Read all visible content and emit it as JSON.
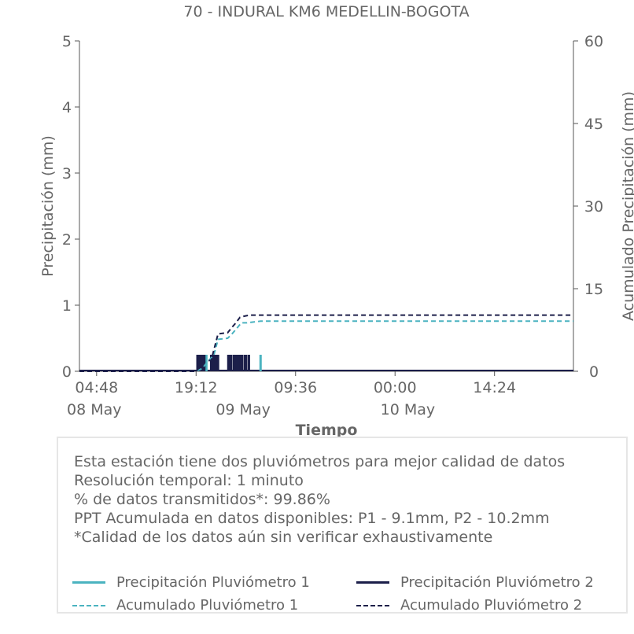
{
  "chart_data": {
    "type": "bar",
    "title": "70 - INDURAL KM6 MEDELLIN-BOGOTA",
    "xlabel": "Tiempo",
    "ylabel": "Precipitación (mm)",
    "y2label": "Acumulado Precipitación (mm)",
    "ylim": [
      0,
      5
    ],
    "y2lim": [
      0,
      60
    ],
    "yticks": [
      "0",
      "1",
      "2",
      "3",
      "4",
      "5"
    ],
    "y2ticks": [
      "0",
      "15",
      "30",
      "45",
      "60"
    ],
    "xlim_hours": [
      0,
      72
    ],
    "xticks": [
      {
        "hour": 2.5,
        "time": "04:48",
        "date": "08 May"
      },
      {
        "hour": 17.0,
        "time": "19:12",
        "date": "09 May"
      },
      {
        "hour": 31.5,
        "time": "09:36",
        "date": ""
      },
      {
        "hour": 46.0,
        "time": "00:00",
        "date": "10 May"
      },
      {
        "hour": 60.5,
        "time": "14:24",
        "date": ""
      }
    ],
    "date_labels": [
      {
        "hour": 0,
        "label": "08 May"
      },
      {
        "hour": 24,
        "label": "09 May"
      },
      {
        "hour": 48,
        "label": "10 May"
      }
    ],
    "series": [
      {
        "name": "Precipitación Pluviómetro 1",
        "kind": "bars",
        "color": "#4bb3c0",
        "points": [
          {
            "x": 17.6,
            "y": 0.25
          },
          {
            "x": 18.5,
            "y": 0.25
          },
          {
            "x": 22.0,
            "y": 0.25
          },
          {
            "x": 23.5,
            "y": 0.25
          },
          {
            "x": 26.4,
            "y": 0.25
          }
        ]
      },
      {
        "name": "Precipitación Pluviómetro 2",
        "kind": "bars",
        "color": "#1c1f4a",
        "points": [
          {
            "x": 17.2,
            "y": 0.25
          },
          {
            "x": 17.4,
            "y": 0.25
          },
          {
            "x": 17.6,
            "y": 0.25
          },
          {
            "x": 17.8,
            "y": 0.25
          },
          {
            "x": 18.0,
            "y": 0.25
          },
          {
            "x": 18.2,
            "y": 0.25
          },
          {
            "x": 19.2,
            "y": 0.25
          },
          {
            "x": 19.4,
            "y": 0.25
          },
          {
            "x": 19.6,
            "y": 0.25
          },
          {
            "x": 19.8,
            "y": 0.25
          },
          {
            "x": 20.0,
            "y": 0.25
          },
          {
            "x": 20.2,
            "y": 0.25
          },
          {
            "x": 21.7,
            "y": 0.25
          },
          {
            "x": 21.9,
            "y": 0.25
          },
          {
            "x": 22.1,
            "y": 0.25
          },
          {
            "x": 22.5,
            "y": 0.25
          },
          {
            "x": 22.7,
            "y": 0.25
          },
          {
            "x": 22.9,
            "y": 0.25
          },
          {
            "x": 23.1,
            "y": 0.25
          },
          {
            "x": 23.3,
            "y": 0.25
          },
          {
            "x": 23.5,
            "y": 0.25
          },
          {
            "x": 23.7,
            "y": 0.25
          },
          {
            "x": 24.1,
            "y": 0.25
          },
          {
            "x": 24.3,
            "y": 0.25
          },
          {
            "x": 24.7,
            "y": 0.25
          }
        ]
      },
      {
        "name": "Acumulado Pluviómetro 1",
        "kind": "dashed-line",
        "color": "#4bb3c0",
        "points": [
          [
            0,
            0
          ],
          [
            17.0,
            0
          ],
          [
            17.9,
            0.5
          ],
          [
            18.6,
            1.6
          ],
          [
            19.6,
            3.0
          ],
          [
            20.2,
            5.8
          ],
          [
            21.6,
            6.0
          ],
          [
            22.1,
            6.6
          ],
          [
            22.8,
            7.6
          ],
          [
            23.6,
            8.8
          ],
          [
            24.4,
            8.8
          ],
          [
            26.4,
            9.1
          ],
          [
            72,
            9.1
          ]
        ]
      },
      {
        "name": "Acumulado Pluviómetro 2",
        "kind": "dashed-line",
        "color": "#1c1f4a",
        "points": [
          [
            0,
            0
          ],
          [
            17.0,
            0
          ],
          [
            17.4,
            0.6
          ],
          [
            18.2,
            1.8
          ],
          [
            19.2,
            2.0
          ],
          [
            20.2,
            6.8
          ],
          [
            21.6,
            7.0
          ],
          [
            22.1,
            7.8
          ],
          [
            22.8,
            8.8
          ],
          [
            23.4,
            9.8
          ],
          [
            24.0,
            10.0
          ],
          [
            24.8,
            10.2
          ],
          [
            72,
            10.2
          ]
        ]
      }
    ]
  },
  "info": {
    "lines": [
      "Esta estación tiene dos pluviómetros para mejor calidad de datos",
      "Resolución temporal: 1 minuto",
      "% de datos transmitidos*: 99.86%",
      "PPT Acumulada en datos disponibles: P1 - 9.1mm, P2 - 10.2mm",
      "*Calidad de los datos aún sin verificar exhaustivamente"
    ]
  },
  "legend": {
    "items": [
      {
        "label": "Precipitación Pluviómetro 1",
        "color": "#4bb3c0",
        "style": "solid"
      },
      {
        "label": "Precipitación Pluviómetro 2",
        "color": "#1c1f4a",
        "style": "solid"
      },
      {
        "label": "Acumulado Pluviómetro 1",
        "color": "#4bb3c0",
        "style": "dashed"
      },
      {
        "label": "Acumulado Pluviómetro 2",
        "color": "#1c1f4a",
        "style": "dashed"
      }
    ]
  }
}
